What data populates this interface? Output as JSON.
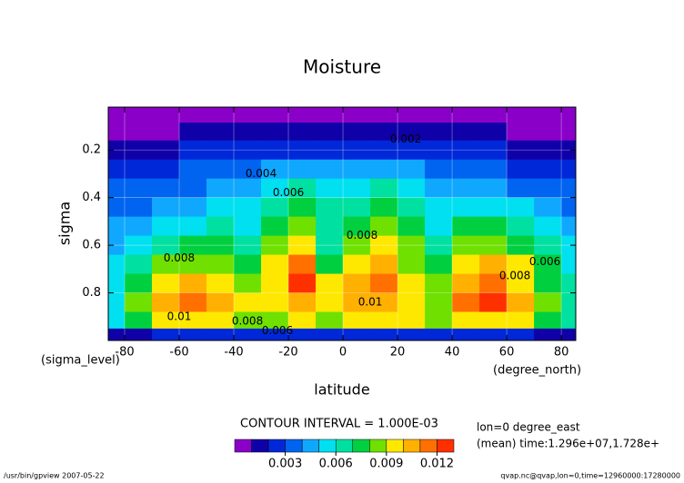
{
  "chart_data": {
    "type": "contour",
    "title": "Moisture",
    "x_label": "latitude",
    "y_label": "sigma",
    "x_unit": "(degree_north)",
    "y_unit": "(sigma_level)",
    "interval_note": "CONTOUR INTERVAL = 1.000E-03",
    "info_lines": [
      "lon=0 degree_east",
      "(mean) time:1.296e+07,1.728e+"
    ],
    "footer_left": "/usr/bin/gpview  2007-05-22",
    "footer_right": "qvap.nc@qvap,lon=0,time=12960000:17280000",
    "xlim": [
      -86.0,
      85.3
    ],
    "ylim": [
      1.0,
      0.02
    ],
    "xticks": [
      -80,
      -60,
      -40,
      -20,
      0,
      20,
      40,
      60,
      80
    ],
    "yticks": [
      0.2,
      0.4,
      0.6,
      0.8
    ],
    "grid": true,
    "x": [
      -85,
      -75,
      -65,
      -55,
      -45,
      -35,
      -25,
      -15,
      -5,
      5,
      15,
      25,
      35,
      45,
      55,
      65,
      75,
      85
    ],
    "y": [
      0.05,
      0.12,
      0.2,
      0.28,
      0.36,
      0.44,
      0.52,
      0.6,
      0.68,
      0.76,
      0.84,
      0.92,
      0.98
    ],
    "z": [
      [
        0.0004,
        0.0004,
        0.0004,
        0.0004,
        0.0004,
        0.0004,
        0.0004,
        0.0004,
        0.0004,
        0.0004,
        0.0004,
        0.0004,
        0.0004,
        0.0004,
        0.0004,
        0.0004,
        0.0004,
        0.0004
      ],
      [
        0.0008,
        0.0008,
        0.0009,
        0.001,
        0.001,
        0.0011,
        0.0012,
        0.0012,
        0.0012,
        0.0012,
        0.0012,
        0.0012,
        0.0011,
        0.001,
        0.001,
        0.0009,
        0.0008,
        0.0008
      ],
      [
        0.0015,
        0.0016,
        0.0018,
        0.002,
        0.0022,
        0.0024,
        0.0026,
        0.0027,
        0.0026,
        0.0026,
        0.0027,
        0.0026,
        0.0024,
        0.0022,
        0.002,
        0.0018,
        0.0016,
        0.0015
      ],
      [
        0.0022,
        0.0024,
        0.0027,
        0.003,
        0.0034,
        0.0038,
        0.0042,
        0.0044,
        0.0041,
        0.0041,
        0.0044,
        0.0042,
        0.0038,
        0.0034,
        0.003,
        0.0027,
        0.0024,
        0.0022
      ],
      [
        0.003,
        0.0032,
        0.0035,
        0.0038,
        0.0042,
        0.0048,
        0.0058,
        0.0062,
        0.0055,
        0.0056,
        0.0062,
        0.0058,
        0.0046,
        0.0045,
        0.0042,
        0.0038,
        0.0034,
        0.003
      ],
      [
        0.0036,
        0.0039,
        0.0043,
        0.0047,
        0.005,
        0.0054,
        0.0068,
        0.0075,
        0.0064,
        0.0066,
        0.0073,
        0.0066,
        0.0053,
        0.0058,
        0.0056,
        0.005,
        0.0043,
        0.0037
      ],
      [
        0.004,
        0.0045,
        0.0052,
        0.0058,
        0.006,
        0.0058,
        0.0076,
        0.0088,
        0.0068,
        0.0074,
        0.0085,
        0.0074,
        0.0056,
        0.0072,
        0.0072,
        0.0064,
        0.0052,
        0.0042
      ],
      [
        0.0045,
        0.0055,
        0.0068,
        0.0075,
        0.0072,
        0.0064,
        0.0085,
        0.0098,
        0.0068,
        0.0082,
        0.0098,
        0.0082,
        0.0062,
        0.0086,
        0.0088,
        0.0078,
        0.0062,
        0.005
      ],
      [
        0.005,
        0.0065,
        0.0082,
        0.0088,
        0.0084,
        0.0072,
        0.0092,
        0.0112,
        0.0075,
        0.0092,
        0.0108,
        0.0088,
        0.0072,
        0.0096,
        0.01,
        0.009,
        0.0072,
        0.0058
      ],
      [
        0.0055,
        0.0075,
        0.0094,
        0.0102,
        0.0096,
        0.0082,
        0.0098,
        0.0122,
        0.009,
        0.01,
        0.0118,
        0.0094,
        0.0082,
        0.0104,
        0.0112,
        0.0098,
        0.0078,
        0.0062
      ],
      [
        0.0058,
        0.008,
        0.0102,
        0.0112,
        0.0108,
        0.009,
        0.0096,
        0.0108,
        0.0098,
        0.01,
        0.0108,
        0.0096,
        0.0088,
        0.011,
        0.0122,
        0.0102,
        0.0082,
        0.0065
      ],
      [
        0.0055,
        0.0072,
        0.009,
        0.0095,
        0.0094,
        0.0086,
        0.0088,
        0.0092,
        0.0088,
        0.009,
        0.0094,
        0.009,
        0.0086,
        0.0092,
        0.0098,
        0.009,
        0.0075,
        0.006
      ],
      [
        0.0015,
        0.0018,
        0.002,
        0.0022,
        0.0022,
        0.002,
        0.002,
        0.0022,
        0.002,
        0.002,
        0.0022,
        0.002,
        0.002,
        0.0022,
        0.0024,
        0.0022,
        0.0018,
        0.0016
      ]
    ],
    "levels": [
      0,
      0.001,
      0.002,
      0.003,
      0.004,
      0.005,
      0.006,
      0.007,
      0.008,
      0.009,
      0.01,
      0.011,
      0.012,
      0.013
    ],
    "colors": [
      "#8a00c8",
      "#1000a8",
      "#0028d8",
      "#0064f0",
      "#10a8ff",
      "#00e0f0",
      "#00e0a0",
      "#00d040",
      "#70e000",
      "#ffe800",
      "#ffb000",
      "#ff7000",
      "#ff3000"
    ],
    "colorbar_ticks": [
      0.003,
      0.006,
      0.009,
      0.012
    ],
    "contour_labels": [
      {
        "level": 0.002,
        "lat": 23,
        "sigma": 0.155
      },
      {
        "level": 0.004,
        "lat": -30,
        "sigma": 0.3
      },
      {
        "level": 0.006,
        "lat": -20,
        "sigma": 0.38
      },
      {
        "level": 0.006,
        "lat": 74,
        "sigma": 0.67
      },
      {
        "level": 0.008,
        "lat": 7,
        "sigma": 0.56
      },
      {
        "level": 0.008,
        "lat": -60,
        "sigma": 0.655
      },
      {
        "level": 0.008,
        "lat": 63,
        "sigma": 0.73
      },
      {
        "level": 0.008,
        "lat": -35,
        "sigma": 0.92
      },
      {
        "level": 0.006,
        "lat": -24,
        "sigma": 0.96
      },
      {
        "level": 0.01,
        "lat": -60,
        "sigma": 0.9
      },
      {
        "level": 0.01,
        "lat": 10,
        "sigma": 0.84
      }
    ]
  }
}
